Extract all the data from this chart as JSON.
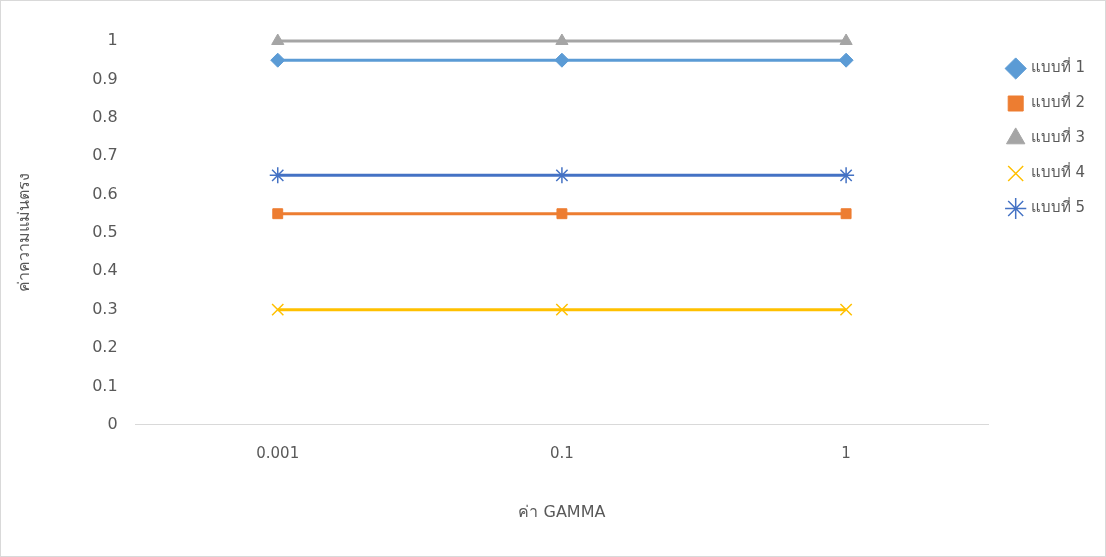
{
  "chart_data": {
    "type": "line",
    "xlabel": "ค่า GAMMA",
    "ylabel": "ค่าความแม่นตรง",
    "categories": [
      "0.001",
      "0.1",
      "1"
    ],
    "series": [
      {
        "name": "แบบที่ 1",
        "color": "#5b9bd5",
        "marker": "diamond",
        "values": [
          0.95,
          0.95,
          0.95
        ]
      },
      {
        "name": "แบบที่ 2",
        "color": "#ed7d31",
        "marker": "square",
        "values": [
          0.55,
          0.55,
          0.55
        ]
      },
      {
        "name": "แบบที่ 3",
        "color": "#a5a5a5",
        "marker": "triangle",
        "values": [
          1,
          1,
          1
        ]
      },
      {
        "name": "แบบที่ 4",
        "color": "#ffc000",
        "marker": "cross",
        "values": [
          0.3,
          0.3,
          0.3
        ]
      },
      {
        "name": "แบบที่ 5",
        "color": "#4472c4",
        "marker": "cross",
        "values": [
          0.65,
          0.65,
          0.65
        ]
      }
    ],
    "ylim": [
      0,
      1
    ],
    "yticks": [
      0,
      0.1,
      0.2,
      0.3,
      0.4,
      0.5,
      0.6,
      0.7,
      0.8,
      0.9,
      1
    ],
    "grid": false,
    "legend": "right",
    "line_style": "solid"
  }
}
